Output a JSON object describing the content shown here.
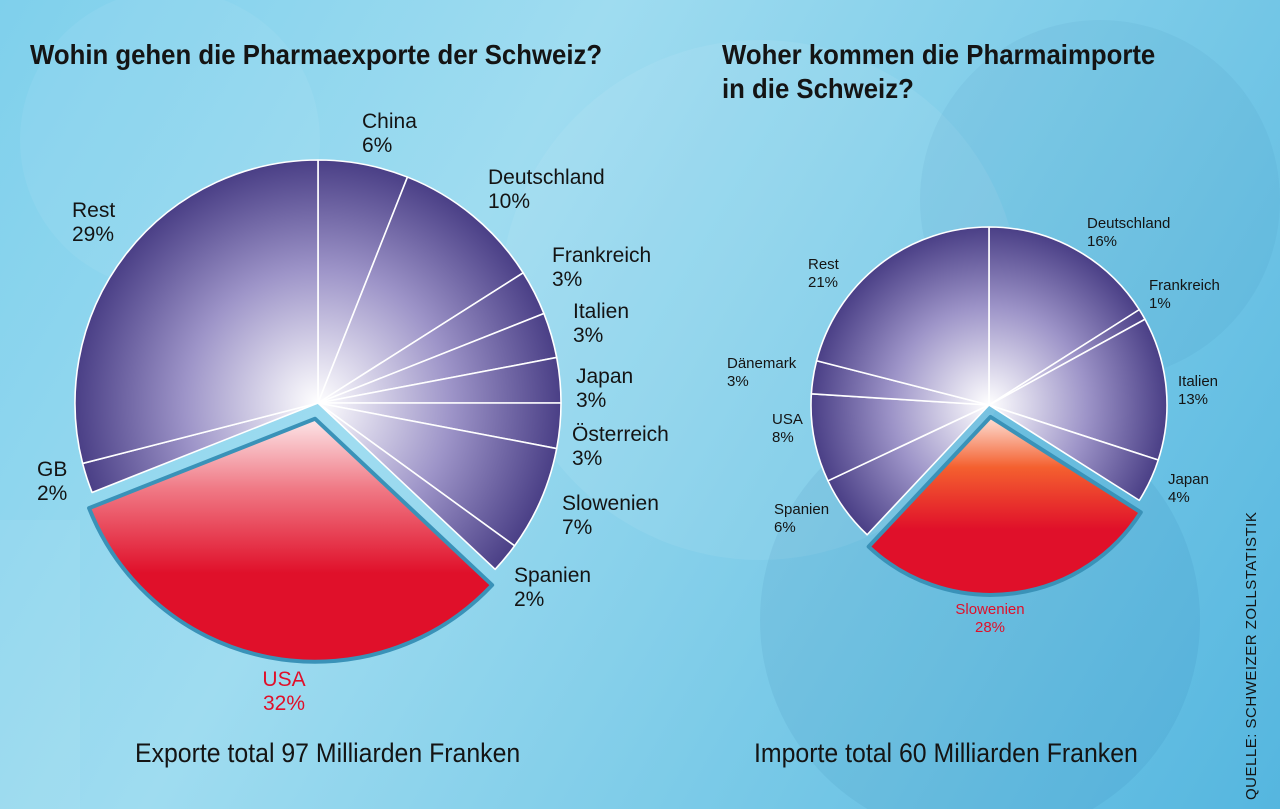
{
  "source": "QUELLE: SCHWEIZER ZOLLSTATISTIK",
  "colors": {
    "highlight": "#e0102a",
    "highlight_light": "#f4602f",
    "slice_dark": "#4a3f86",
    "slice_light": "#ffffff",
    "separator": "#3a92b8"
  },
  "chart_data": [
    {
      "type": "pie",
      "title": "Wohin gehen die Pharmaexporte der Schweiz?",
      "total_label": "Exporte total 97 Milliarden Franken",
      "slices": [
        {
          "label": "China",
          "value": 6,
          "value_label": "6%"
        },
        {
          "label": "Deutschland",
          "value": 10,
          "value_label": "10%"
        },
        {
          "label": "Frankreich",
          "value": 3,
          "value_label": "3%"
        },
        {
          "label": "Italien",
          "value": 3,
          "value_label": "3%"
        },
        {
          "label": "Japan",
          "value": 3,
          "value_label": "3%"
        },
        {
          "label": "Österreich",
          "value": 3,
          "value_label": "3%"
        },
        {
          "label": "Slowenien",
          "value": 7,
          "value_label": "7%"
        },
        {
          "label": "Spanien",
          "value": 2,
          "value_label": "2%"
        },
        {
          "label": "USA",
          "value": 32,
          "value_label": "32%",
          "highlight": true
        },
        {
          "label": "GB",
          "value": 2,
          "value_label": "2%"
        },
        {
          "label": "Rest",
          "value": 29,
          "value_label": "29%"
        }
      ]
    },
    {
      "type": "pie",
      "title": "Woher kommen die Pharmaimporte in die Schweiz?",
      "total_label": "Importe total 60 Milliarden Franken",
      "slices": [
        {
          "label": "Deutschland",
          "value": 16,
          "value_label": "16%"
        },
        {
          "label": "Frankreich",
          "value": 1,
          "value_label": "1%"
        },
        {
          "label": "Italien",
          "value": 13,
          "value_label": "13%"
        },
        {
          "label": "Japan",
          "value": 4,
          "value_label": "4%"
        },
        {
          "label": "Slowenien",
          "value": 28,
          "value_label": "28%",
          "highlight": true
        },
        {
          "label": "Spanien",
          "value": 6,
          "value_label": "6%"
        },
        {
          "label": "USA",
          "value": 8,
          "value_label": "8%"
        },
        {
          "label": "Dänemark",
          "value": 3,
          "value_label": "3%"
        },
        {
          "label": "Rest",
          "value": 21,
          "value_label": "21%"
        }
      ]
    }
  ]
}
